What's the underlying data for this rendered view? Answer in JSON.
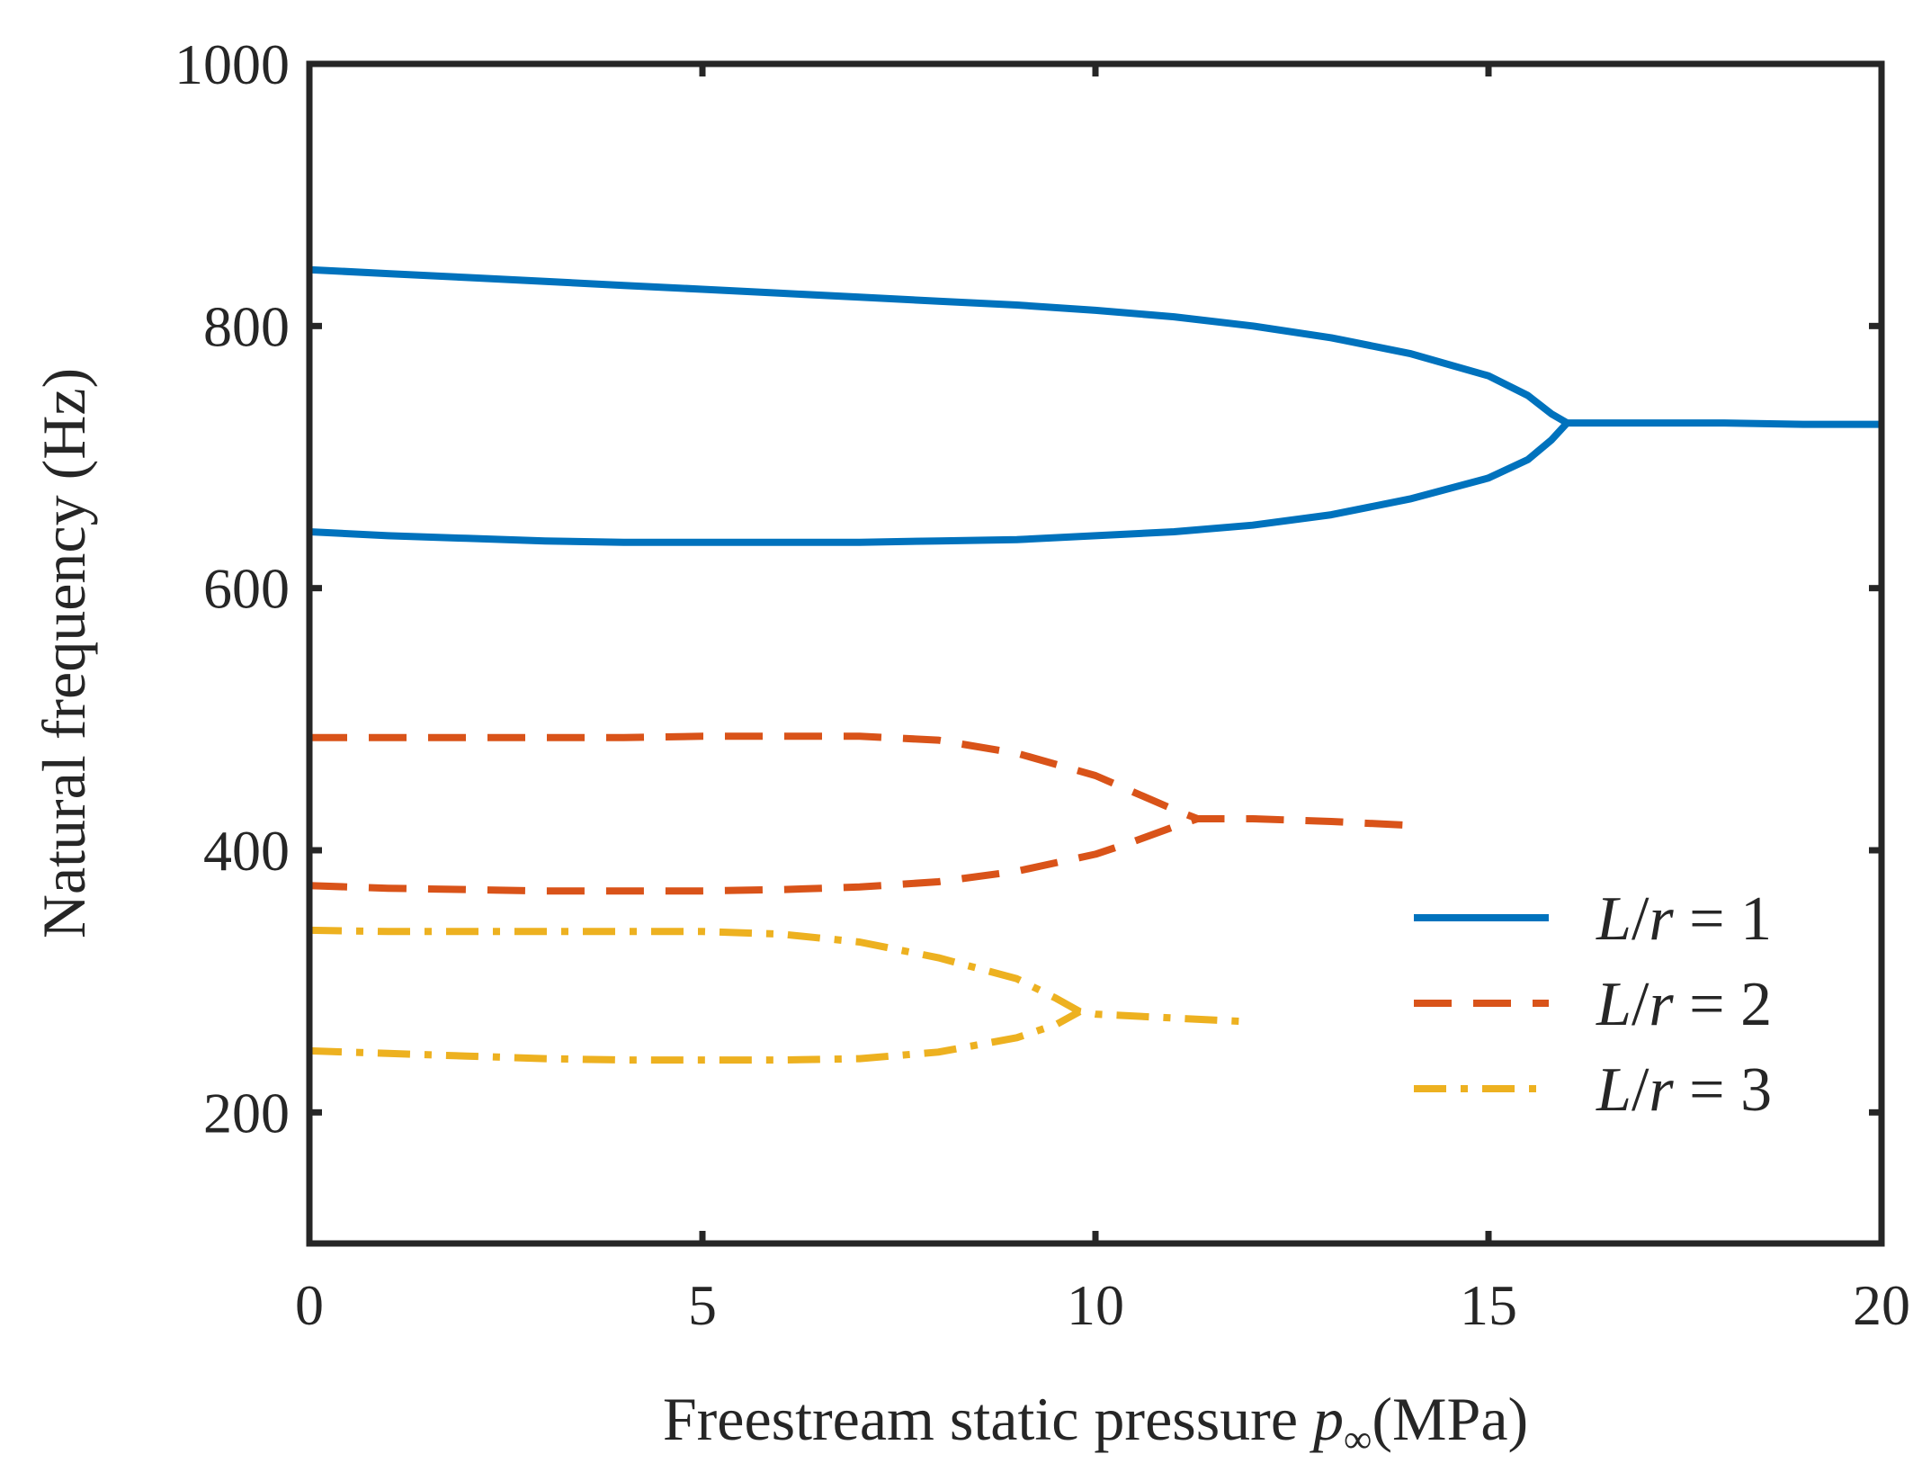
{
  "chart_data": {
    "type": "line",
    "title": "",
    "xlabel": "Freestream static pressure p∞(MPa)",
    "xlabel_parts": {
      "main": "Freestream static pressure ",
      "symbol": "p",
      "subscript": "∞",
      "unit": "(MPa)"
    },
    "ylabel": "Natural frequency (Hz)",
    "xlim": [
      0,
      20
    ],
    "ylim": [
      100,
      1000
    ],
    "xticks": [
      0,
      5,
      10,
      15,
      20
    ],
    "yticks": [
      200,
      400,
      600,
      800,
      1000
    ],
    "xtick_labels": [
      "0",
      "5",
      "10",
      "15",
      "20"
    ],
    "ytick_labels": [
      "200",
      "400",
      "600",
      "800",
      "1000"
    ],
    "grid": false,
    "legend_position": "bottom-right",
    "series": [
      {
        "name": "L/r = 1",
        "legend": {
          "italic_a": "L",
          "slash": "/",
          "italic_b": "r",
          "rest": " = 1"
        },
        "color": "#0072BD",
        "style": "solid",
        "branches": [
          {
            "x": [
              0,
              1,
              2,
              3,
              4,
              5,
              6,
              7,
              8,
              9,
              10,
              11,
              12,
              13,
              14,
              15,
              15.5,
              15.8,
              16,
              17,
              18,
              19,
              20
            ],
            "y": [
              843,
              840,
              837,
              834,
              831,
              828,
              825,
              822,
              819,
              816,
              812,
              807,
              800,
              791,
              779,
              762,
              747,
              733,
              726,
              726,
              726,
              725,
              725
            ]
          },
          {
            "x": [
              0,
              1,
              2,
              3,
              4,
              5,
              6,
              7,
              8,
              9,
              10,
              11,
              12,
              13,
              14,
              15,
              15.5,
              15.8,
              16
            ],
            "y": [
              643,
              640,
              638,
              636,
              635,
              635,
              635,
              635,
              636,
              637,
              640,
              643,
              648,
              656,
              668,
              684,
              698,
              713,
              726
            ]
          }
        ]
      },
      {
        "name": "L/r = 2",
        "legend": {
          "italic_a": "L",
          "slash": "/",
          "italic_b": "r",
          "rest": " = 2"
        },
        "color": "#D95319",
        "style": "dashed",
        "branches": [
          {
            "x": [
              0,
              1,
              2,
              3,
              4,
              5,
              6,
              7,
              8,
              9,
              10,
              10.5,
              11,
              11.3,
              12,
              13,
              14
            ],
            "y": [
              486,
              486,
              486,
              486,
              486,
              487,
              487,
              487,
              484,
              474,
              457,
              444,
              431,
              424,
              424,
              422,
              419
            ]
          },
          {
            "x": [
              0,
              1,
              2,
              3,
              4,
              5,
              6,
              7,
              8,
              9,
              10,
              10.5,
              11,
              11.3
            ],
            "y": [
              373,
              371,
              370,
              369,
              369,
              369,
              370,
              372,
              376,
              384,
              397,
              407,
              418,
              424
            ]
          }
        ]
      },
      {
        "name": "L/r = 3",
        "legend": {
          "italic_a": "L",
          "slash": "/",
          "italic_b": "r",
          "rest": " = 3"
        },
        "color": "#EDB120",
        "style": "dashdot",
        "branches": [
          {
            "x": [
              0,
              1,
              2,
              3,
              4,
              5,
              6,
              7,
              8,
              9,
              9.5,
              9.8,
              10,
              11,
              12
            ],
            "y": [
              339,
              338,
              338,
              338,
              338,
              338,
              336,
              330,
              318,
              302,
              287,
              277,
              275,
              272,
              269
            ]
          },
          {
            "x": [
              0,
              1,
              2,
              3,
              4,
              5,
              6,
              7,
              8,
              9,
              9.5,
              9.8
            ],
            "y": [
              247,
              245,
              243,
              241,
              240,
              240,
              240,
              241,
              246,
              257,
              267,
              277
            ]
          }
        ]
      }
    ]
  }
}
